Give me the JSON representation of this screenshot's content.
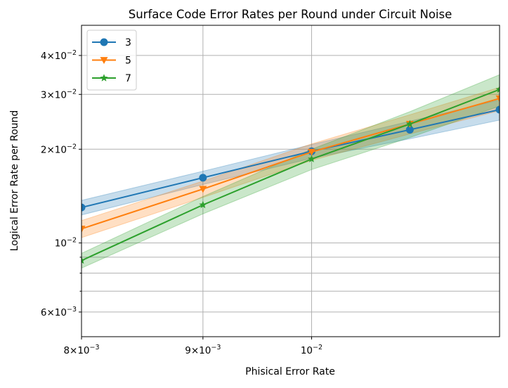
{
  "chart_data": {
    "type": "line",
    "title": "Surface Code Error Rates per Round under Circuit Noise",
    "xlabel": "Phisical Error Rate",
    "ylabel": "Logical Error Rate per Round",
    "xscale": "log",
    "yscale": "log",
    "xlim": [
      0.008,
      0.012
    ],
    "ylim": [
      0.005,
      0.05
    ],
    "grid": true,
    "legend_position": "top-left",
    "x": [
      0.008,
      0.009,
      0.01,
      0.011,
      0.012
    ],
    "x_ticks": [
      {
        "value": 0.008,
        "mantissa": "8",
        "exp": "−3"
      },
      {
        "value": 0.009,
        "mantissa": "9",
        "exp": "−3"
      },
      {
        "value": 0.01,
        "mantissa": "",
        "exp": "−2"
      }
    ],
    "y_ticks": [
      {
        "value": 0.006,
        "mantissa": "6",
        "exp": "−3"
      },
      {
        "value": 0.01,
        "mantissa": "",
        "exp": "−2"
      },
      {
        "value": 0.02,
        "mantissa": "2",
        "exp": "−2"
      },
      {
        "value": 0.03,
        "mantissa": "3",
        "exp": "−2"
      },
      {
        "value": 0.04,
        "mantissa": "4",
        "exp": "−2"
      }
    ],
    "y_minor_gridlines": [
      0.007,
      0.008,
      0.009
    ],
    "series": [
      {
        "name": "3",
        "color": "#1f77b4",
        "marker": "circle",
        "values": [
          0.013,
          0.0162,
          0.0197,
          0.0231,
          0.0268
        ],
        "lower": [
          0.0123,
          0.0154,
          0.0187,
          0.0216,
          0.0248
        ],
        "upper": [
          0.0137,
          0.017,
          0.0207,
          0.0246,
          0.0288
        ]
      },
      {
        "name": "5",
        "color": "#ff7f0e",
        "marker": "triangle-down",
        "values": [
          0.0111,
          0.0149,
          0.0196,
          0.0241,
          0.0291
        ],
        "lower": [
          0.0104,
          0.014,
          0.0184,
          0.0224,
          0.0266
        ],
        "upper": [
          0.0118,
          0.0158,
          0.0208,
          0.0258,
          0.0316
        ]
      },
      {
        "name": "7",
        "color": "#2ca02c",
        "marker": "star",
        "values": [
          0.00878,
          0.01325,
          0.0186,
          0.0241,
          0.0311
        ],
        "lower": [
          0.0083,
          0.0124,
          0.0172,
          0.0218,
          0.0275
        ],
        "upper": [
          0.00926,
          0.0141,
          0.02,
          0.0264,
          0.0347
        ]
      }
    ]
  }
}
